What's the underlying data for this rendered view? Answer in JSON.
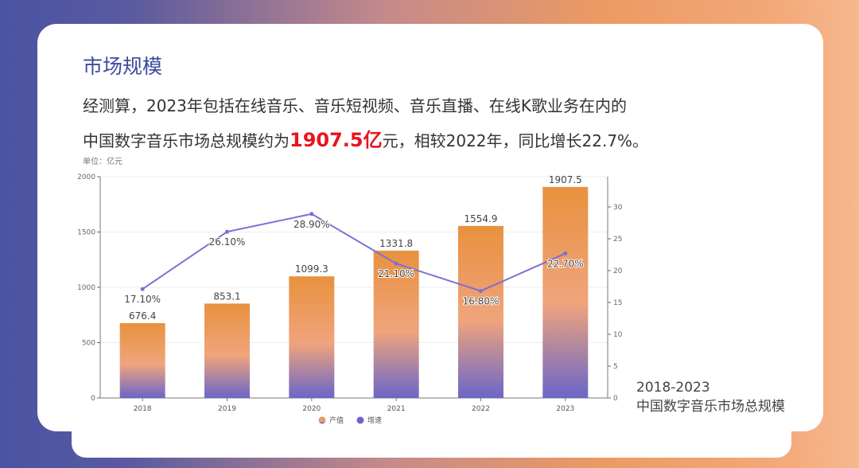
{
  "title": "市场规模",
  "description": {
    "line1": "经测算，2023年包括在线音乐、音乐短视频、音乐直播、在线K歌业务在内的",
    "line2_pre": "中国数字音乐市场总规模约为",
    "line2_highlight": "1907.5亿",
    "line2_post": "元，相较2022年，同比增长22.7%。"
  },
  "unit_label": "单位：亿元",
  "side_caption": {
    "line1": "2018-2023",
    "line2": "中国数字音乐市场总规模"
  },
  "colors": {
    "title": "#3d4a9c",
    "highlight": "#e8141c",
    "bar_top": "#e8913e",
    "bar_mid": "#f0a47c",
    "bar_bottom": "#6a66c8",
    "line": "#7a6fd6"
  },
  "chart_data": {
    "type": "bar+line",
    "categories": [
      "2018",
      "2019",
      "2020",
      "2021",
      "2022",
      "2023"
    ],
    "series": [
      {
        "name": "产值",
        "type": "bar",
        "axis": "left",
        "values": [
          676.4,
          853.1,
          1099.3,
          1331.8,
          1554.9,
          1907.5
        ],
        "labels": [
          "676.4",
          "853.1",
          "1099.3",
          "1331.8",
          "1554.9",
          "1907.5"
        ]
      },
      {
        "name": "增速",
        "type": "line",
        "axis": "right",
        "values": [
          17.1,
          26.1,
          28.9,
          21.1,
          16.8,
          22.7
        ],
        "labels": [
          "17.10%",
          "26.10%",
          "28.90%",
          "21.10%",
          "16.80%",
          "22.70%"
        ]
      }
    ],
    "y_left": {
      "ylim": [
        0,
        2000
      ],
      "ticks": [
        0,
        500,
        1000,
        1500,
        2000
      ]
    },
    "y_right": {
      "ylim": [
        0,
        34.75
      ],
      "ticks": [
        0,
        5,
        10,
        15,
        20,
        25,
        30
      ]
    },
    "grid": true,
    "legend": "bottom"
  }
}
